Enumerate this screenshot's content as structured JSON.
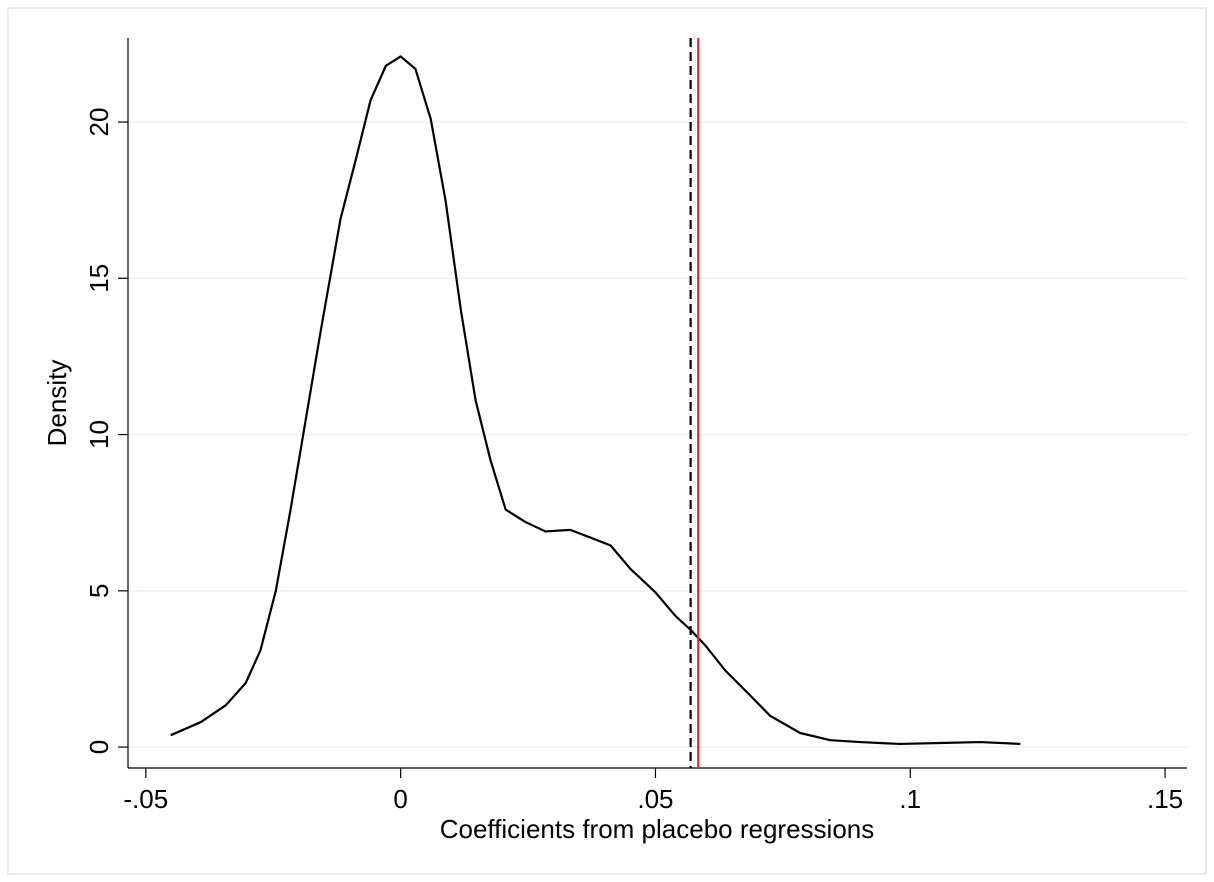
{
  "chart_data": {
    "type": "line",
    "xlabel": "Coefficients from placebo regressions",
    "ylabel": "Density",
    "x": [
      -0.0451,
      -0.0392,
      -0.0343,
      -0.0304,
      -0.0275,
      -0.0245,
      -0.0216,
      -0.0186,
      -0.0157,
      -0.0118,
      -0.0088,
      -0.0059,
      -0.0029,
      0,
      0.0029,
      0.0059,
      0.0088,
      0.0118,
      0.0147,
      0.0176,
      0.0206,
      0.0245,
      0.0284,
      0.0333,
      0.0373,
      0.0412,
      0.0451,
      0.05,
      0.0539,
      0.0569,
      0.0598,
      0.0637,
      0.0686,
      0.0725,
      0.0784,
      0.0843,
      0.0902,
      0.098,
      0.1059,
      0.1137,
      0.1216
    ],
    "series": [
      {
        "color": "#000000",
        "values": [
          0.38,
          0.8,
          1.34,
          2.05,
          3.1,
          5.0,
          7.6,
          10.5,
          13.3,
          16.9,
          18.8,
          20.7,
          21.8,
          22.1,
          21.7,
          20.1,
          17.5,
          14.0,
          11.1,
          9.2,
          7.6,
          7.2,
          6.9,
          6.95,
          6.7,
          6.45,
          5.7,
          4.95,
          4.2,
          3.75,
          3.25,
          2.45,
          1.65,
          1.0,
          0.45,
          0.22,
          0.16,
          0.1,
          0.13,
          0.16,
          0.1
        ]
      }
    ],
    "reference_lines": [
      {
        "value": 0.0569,
        "color": "#000000",
        "style": "dashed"
      },
      {
        "value": 0.0584,
        "color": "#e8202a",
        "style": "solid"
      }
    ],
    "xlim": [
      -0.0535,
      0.1543
    ],
    "ylim": [
      -0.67,
      22.69
    ],
    "xticks": [
      {
        "value": -0.05,
        "label": "-.05"
      },
      0,
      {
        "value": 0.05,
        "label": ".05"
      },
      {
        "value": 0.1,
        "label": ".1"
      },
      {
        "value": 0.15,
        "label": ".15"
      }
    ],
    "yticks": [
      0,
      5,
      10,
      15,
      20
    ],
    "grid": true
  }
}
